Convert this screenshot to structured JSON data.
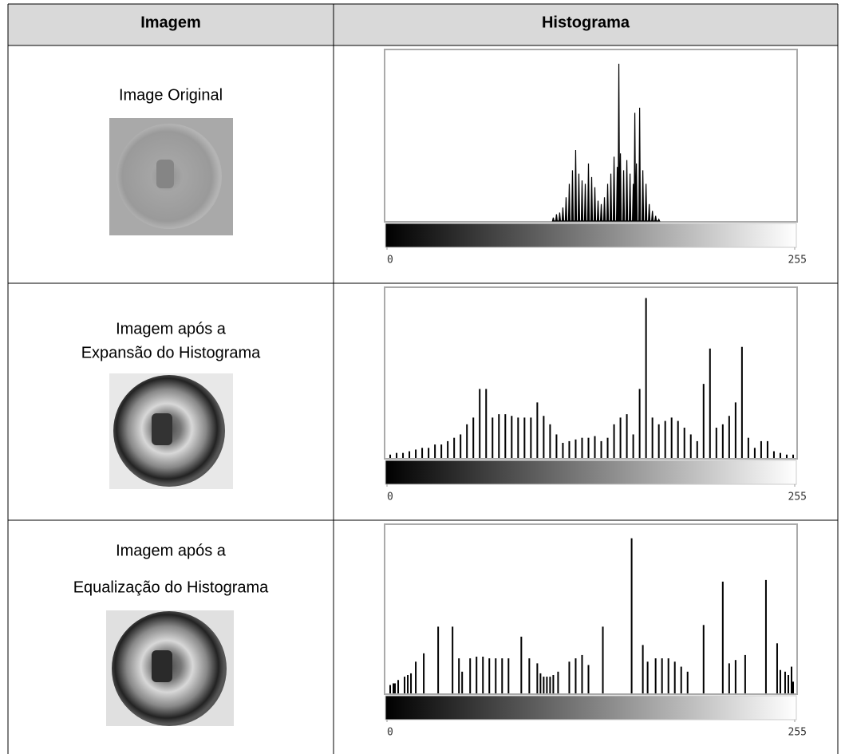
{
  "table": {
    "header": [
      "Imagem",
      "Histograma"
    ],
    "rows": [
      {
        "caption": [
          "Image Original"
        ],
        "histogram": {
          "type": "area",
          "color": "#000000",
          "xlim": [
            0,
            255
          ],
          "xticks": [
            0,
            255
          ],
          "ylim": [
            0,
            100
          ],
          "x": [
            104,
            106,
            108,
            110,
            112,
            114,
            116,
            118,
            120,
            122,
            124,
            126,
            128,
            130,
            132,
            134,
            136,
            138,
            140,
            142,
            144,
            145,
            146,
            148,
            150,
            152,
            154,
            155,
            156,
            158,
            160,
            162,
            164,
            166,
            168,
            170
          ],
          "values": [
            2,
            4,
            5,
            8,
            14,
            22,
            30,
            42,
            28,
            24,
            22,
            34,
            26,
            20,
            12,
            10,
            14,
            22,
            28,
            38,
            32,
            93,
            40,
            30,
            36,
            28,
            22,
            64,
            34,
            67,
            30,
            22,
            10,
            6,
            3,
            1
          ]
        }
      },
      {
        "caption": [
          "Imagem após a",
          "Expansão do Histograma"
        ],
        "histogram": {
          "type": "bar",
          "color": "#000000",
          "xlim": [
            0,
            255
          ],
          "xticks": [
            0,
            255
          ],
          "ylim": [
            0,
            100
          ],
          "x": [
            2,
            6,
            10,
            14,
            18,
            22,
            26,
            30,
            34,
            38,
            42,
            46,
            50,
            54,
            58,
            62,
            66,
            70,
            74,
            78,
            82,
            86,
            90,
            94,
            98,
            102,
            106,
            110,
            114,
            118,
            122,
            126,
            130,
            134,
            138,
            142,
            146,
            150,
            154,
            158,
            162,
            166,
            170,
            174,
            178,
            182,
            186,
            190,
            194,
            198,
            202,
            206,
            210,
            214,
            218,
            222,
            226,
            230,
            234,
            238,
            242,
            246,
            250,
            254
          ],
          "values": [
            2,
            3,
            3,
            4,
            5,
            6,
            6,
            8,
            8,
            10,
            12,
            14,
            20,
            24,
            41,
            41,
            24,
            26,
            26,
            25,
            24,
            24,
            24,
            33,
            25,
            20,
            14,
            9,
            10,
            11,
            12,
            12,
            13,
            10,
            12,
            20,
            24,
            26,
            14,
            41,
            95,
            24,
            20,
            22,
            24,
            22,
            18,
            14,
            10,
            44,
            65,
            18,
            20,
            25,
            33,
            66,
            12,
            6,
            10,
            10,
            4,
            3,
            2,
            2
          ]
        }
      },
      {
        "caption": [
          "Imagem após a",
          "Equalização do Histograma"
        ],
        "histogram": {
          "type": "bar",
          "color": "#000000",
          "xlim": [
            0,
            255
          ],
          "xticks": [
            0,
            255
          ],
          "ylim": [
            0,
            100
          ],
          "x": [
            2,
            4,
            5,
            7,
            11,
            13,
            15,
            18,
            23,
            32,
            41,
            45,
            47,
            52,
            56,
            60,
            64,
            68,
            72,
            76,
            84,
            89,
            94,
            96,
            98,
            100,
            102,
            104,
            107,
            114,
            118,
            122,
            126,
            135,
            153,
            160,
            163,
            168,
            172,
            176,
            180,
            184,
            188,
            198,
            210,
            214,
            218,
            224,
            237,
            244,
            246,
            249,
            251,
            253,
            254
          ],
          "values": [
            5,
            6,
            6,
            8,
            10,
            11,
            12,
            19,
            24,
            40,
            40,
            21,
            13,
            21,
            22,
            22,
            21,
            21,
            21,
            21,
            34,
            21,
            18,
            12,
            10,
            10,
            10,
            11,
            13,
            19,
            21,
            23,
            17,
            40,
            93,
            29,
            19,
            21,
            21,
            21,
            19,
            16,
            13,
            41,
            67,
            18,
            20,
            23,
            68,
            30,
            14,
            13,
            11,
            16,
            7
          ]
        }
      }
    ]
  }
}
